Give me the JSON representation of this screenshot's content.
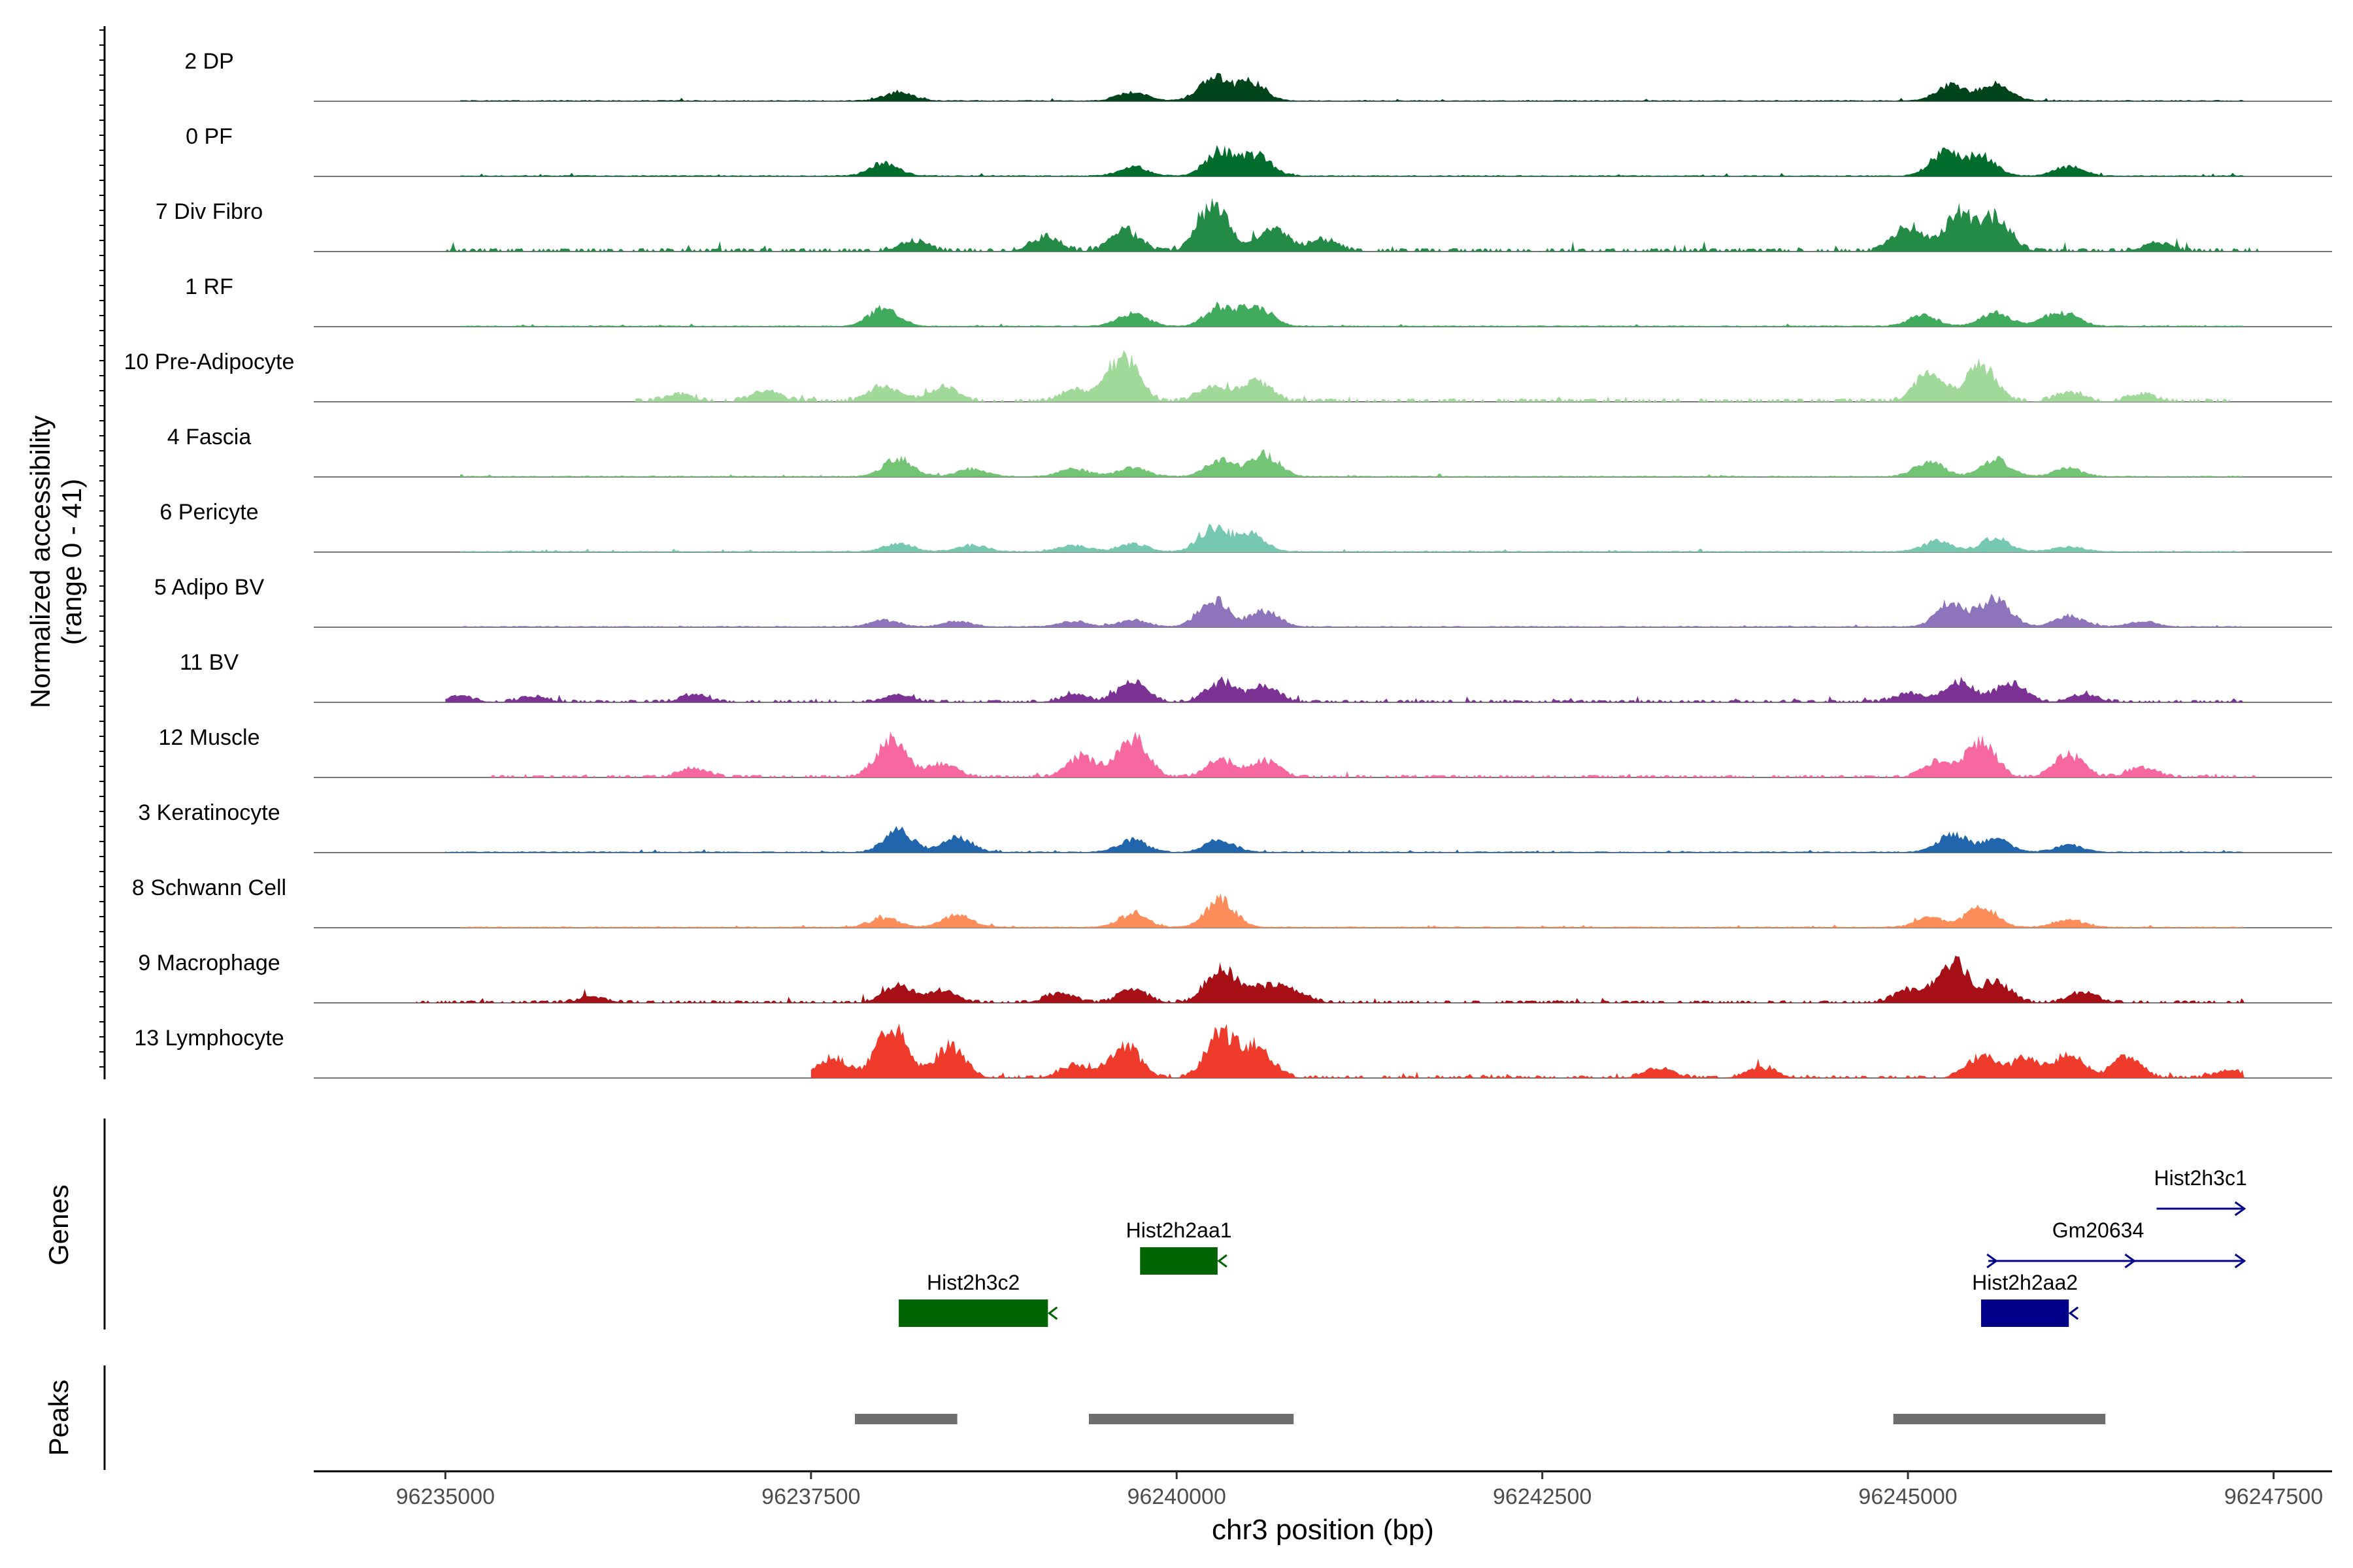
{
  "chart_data": {
    "type": "area",
    "title": "",
    "xlabel": "chr3 position (bp)",
    "ylabel": "Normalized accessibility\n(range 0 - 41)",
    "ylabel_line1": "Normalized accessibility",
    "ylabel_line2": "(range 0 - 41)",
    "y_range": [
      0,
      41
    ],
    "xlim": [
      96234100,
      96247900
    ],
    "x_ticks": [
      96235000,
      96237500,
      96240000,
      96242500,
      96245000,
      96247500
    ],
    "x_tick_labels": [
      "96235000",
      "96237500",
      "96240000",
      "96242500",
      "96245000",
      "96247500"
    ],
    "grid": false,
    "legend": "none",
    "tracks": [
      {
        "name": "2 DP",
        "color": "#00441b",
        "peaks": [
          [
            96238100,
            12
          ],
          [
            96239700,
            14
          ],
          [
            96240250,
            34
          ],
          [
            96240500,
            28
          ],
          [
            96245300,
            26
          ],
          [
            96245600,
            24
          ]
        ],
        "baseline": 1.5,
        "span": [
          96235100,
          96247300
        ],
        "noise": 2,
        "seed": 1
      },
      {
        "name": "0 PF",
        "color": "#006d2c",
        "peaks": [
          [
            96238000,
            20
          ],
          [
            96239700,
            14
          ],
          [
            96240300,
            38
          ],
          [
            96240550,
            30
          ],
          [
            96245250,
            34
          ],
          [
            96245500,
            30
          ],
          [
            96246100,
            14
          ]
        ],
        "baseline": 1.5,
        "span": [
          96235100,
          96247300
        ],
        "noise": 2,
        "seed": 2
      },
      {
        "name": "7 Div Fibro",
        "color": "#238b45",
        "peaks": [
          [
            96238200,
            14
          ],
          [
            96239100,
            20
          ],
          [
            96239650,
            30
          ],
          [
            96240250,
            70
          ],
          [
            96240650,
            34
          ],
          [
            96241000,
            16
          ],
          [
            96245000,
            34
          ],
          [
            96245350,
            58
          ],
          [
            96245600,
            48
          ],
          [
            96246700,
            12
          ]
        ],
        "baseline": 4,
        "span": [
          96235000,
          96247400
        ],
        "noise": 6,
        "seed": 3,
        "sparse": true
      },
      {
        "name": "1 RF",
        "color": "#41ab5d",
        "peaks": [
          [
            96238000,
            28
          ],
          [
            96239700,
            20
          ],
          [
            96240300,
            30
          ],
          [
            96240550,
            30
          ],
          [
            96245100,
            16
          ],
          [
            96245600,
            20
          ],
          [
            96246000,
            14
          ],
          [
            96246100,
            10
          ]
        ],
        "baseline": 1.5,
        "span": [
          96235100,
          96247300
        ],
        "noise": 2,
        "seed": 4
      },
      {
        "name": "10 Pre-Adipocyte",
        "color": "#a1d99b",
        "peaks": [
          [
            96236600,
            10
          ],
          [
            96237200,
            14
          ],
          [
            96238000,
            22
          ],
          [
            96238400,
            20
          ],
          [
            96239300,
            16
          ],
          [
            96239600,
            26
          ],
          [
            96239650,
            46
          ],
          [
            96240250,
            22
          ],
          [
            96240550,
            30
          ],
          [
            96245150,
            42
          ],
          [
            96245500,
            54
          ],
          [
            96246100,
            12
          ],
          [
            96246600,
            10
          ]
        ],
        "baseline": 4,
        "span": [
          96236300,
          96247200
        ],
        "noise": 5,
        "seed": 5,
        "sparse": true
      },
      {
        "name": "4 Fascia",
        "color": "#74c476",
        "peaks": [
          [
            96238100,
            28
          ],
          [
            96238600,
            12
          ],
          [
            96239300,
            12
          ],
          [
            96239700,
            14
          ],
          [
            96240300,
            24
          ],
          [
            96240600,
            34
          ],
          [
            96245150,
            22
          ],
          [
            96245600,
            26
          ],
          [
            96246100,
            12
          ]
        ],
        "baseline": 1.5,
        "span": [
          96235100,
          96247300
        ],
        "noise": 2,
        "seed": 6
      },
      {
        "name": "6 Pericyte",
        "color": "#76c8b0",
        "peaks": [
          [
            96238100,
            12
          ],
          [
            96238600,
            10
          ],
          [
            96239300,
            10
          ],
          [
            96239700,
            12
          ],
          [
            96240250,
            36
          ],
          [
            96240500,
            28
          ],
          [
            96245200,
            16
          ],
          [
            96245600,
            20
          ],
          [
            96246100,
            8
          ]
        ],
        "baseline": 1.5,
        "span": [
          96235100,
          96247300
        ],
        "noise": 2,
        "seed": 7
      },
      {
        "name": "5 Adipo BV",
        "color": "#8e74bb",
        "peaks": [
          [
            96238000,
            10
          ],
          [
            96238500,
            8
          ],
          [
            96239300,
            8
          ],
          [
            96239700,
            10
          ],
          [
            96240250,
            42
          ],
          [
            96240600,
            24
          ],
          [
            96245300,
            38
          ],
          [
            96245600,
            44
          ],
          [
            96246100,
            16
          ],
          [
            96246600,
            8
          ]
        ],
        "baseline": 1.5,
        "span": [
          96235100,
          96247300
        ],
        "noise": 2,
        "seed": 8
      },
      {
        "name": "11 BV",
        "color": "#7b3294",
        "peaks": [
          [
            96235100,
            8
          ],
          [
            96235600,
            8
          ],
          [
            96236700,
            10
          ],
          [
            96238100,
            10
          ],
          [
            96239300,
            10
          ],
          [
            96239700,
            28
          ],
          [
            96240300,
            30
          ],
          [
            96240600,
            22
          ],
          [
            96245000,
            12
          ],
          [
            96245350,
            30
          ],
          [
            96245700,
            28
          ],
          [
            96246200,
            10
          ]
        ],
        "baseline": 3,
        "span": [
          96235000,
          96247300
        ],
        "noise": 4,
        "seed": 9,
        "sparse": true
      },
      {
        "name": "12 Muscle",
        "color": "#f768a1",
        "peaks": [
          [
            96236700,
            12
          ],
          [
            96238050,
            56
          ],
          [
            96238400,
            20
          ],
          [
            96239350,
            30
          ],
          [
            96239700,
            60
          ],
          [
            96240300,
            24
          ],
          [
            96240600,
            24
          ],
          [
            96245200,
            22
          ],
          [
            96245500,
            52
          ],
          [
            96246100,
            34
          ],
          [
            96246600,
            14
          ]
        ],
        "baseline": 3,
        "span": [
          96235200,
          96247400
        ],
        "noise": 4,
        "seed": 10,
        "sparse": true
      },
      {
        "name": "3 Keratinocyte",
        "color": "#2166ac",
        "peaks": [
          [
            96238100,
            32
          ],
          [
            96238500,
            22
          ],
          [
            96239700,
            18
          ],
          [
            96240300,
            18
          ],
          [
            96245300,
            26
          ],
          [
            96245600,
            20
          ],
          [
            96246100,
            10
          ]
        ],
        "baseline": 1.5,
        "span": [
          96235000,
          96247300
        ],
        "noise": 2,
        "seed": 11
      },
      {
        "name": "8 Schwann Cell",
        "color": "#fd8d5b",
        "peaks": [
          [
            96238000,
            14
          ],
          [
            96238500,
            18
          ],
          [
            96239700,
            20
          ],
          [
            96240300,
            42
          ],
          [
            96245150,
            14
          ],
          [
            96245500,
            34
          ],
          [
            96246100,
            12
          ]
        ],
        "baseline": 1.5,
        "span": [
          96235100,
          96247300
        ],
        "noise": 2,
        "seed": 12
      },
      {
        "name": "9 Macrophage",
        "color": "#a50f15",
        "peaks": [
          [
            96236000,
            8
          ],
          [
            96238100,
            24
          ],
          [
            96238400,
            16
          ],
          [
            96239200,
            14
          ],
          [
            96239700,
            18
          ],
          [
            96240300,
            54
          ],
          [
            96240600,
            24
          ],
          [
            96240800,
            16
          ],
          [
            96245000,
            18
          ],
          [
            96245300,
            64
          ],
          [
            96245600,
            30
          ],
          [
            96246200,
            14
          ]
        ],
        "baseline": 3,
        "span": [
          96234800,
          96247300
        ],
        "noise": 5,
        "seed": 13,
        "sparse": true
      },
      {
        "name": "13 Lymphocyte",
        "color": "#ef3b2c",
        "peaks": [
          [
            96237650,
            30
          ],
          [
            96238050,
            80
          ],
          [
            96238450,
            46
          ],
          [
            96239300,
            18
          ],
          [
            96239650,
            48
          ],
          [
            96240300,
            64
          ],
          [
            96240550,
            48
          ],
          [
            96243300,
            14
          ],
          [
            96244000,
            14
          ],
          [
            96245500,
            32
          ],
          [
            96245800,
            28
          ],
          [
            96246100,
            34
          ],
          [
            96246500,
            30
          ],
          [
            96247200,
            10
          ]
        ],
        "baseline": 3,
        "span": [
          96237500,
          96247300
        ],
        "noise": 5,
        "seed": 14,
        "sparse": true
      }
    ],
    "genes": [
      {
        "name": "Hist2h3c2",
        "start": 96238100,
        "end": 96239120,
        "strand": "-",
        "color": "#006400",
        "row": 2
      },
      {
        "name": "Hist2h2aa1",
        "start": 96239750,
        "end": 96240280,
        "strand": "-",
        "color": "#006400",
        "row": 1
      },
      {
        "name": "Hist2h2aa2",
        "start": 96245500,
        "end": 96246100,
        "strand": "-",
        "color": "#00008b",
        "row": 2
      },
      {
        "name": "Gm20634",
        "start": 96245550,
        "end": 96247300,
        "strand": "+",
        "color": "#00008b",
        "row": 1,
        "line": true
      },
      {
        "name": "Hist2h3c1",
        "start": 96246700,
        "end": 96247300,
        "strand": "+",
        "color": "#00008b",
        "row": 0,
        "line": true
      }
    ],
    "peak_regions": [
      [
        96237800,
        96238500
      ],
      [
        96239400,
        96240800
      ],
      [
        96244900,
        96246350
      ]
    ],
    "side_labels": {
      "genes": "Genes",
      "peaks": "Peaks"
    }
  }
}
